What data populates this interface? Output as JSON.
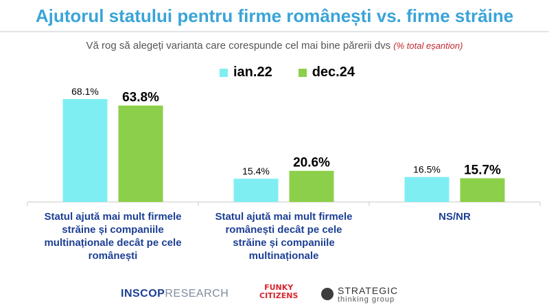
{
  "header": {
    "title": "Ajutorul statului pentru firme românești vs. firme străine",
    "subtitle": "Vă rog să alegeți varianta care corespunde cel mai bine părerii dvs",
    "subtitle_note": "(% total eșantion)"
  },
  "colors": {
    "title": "#3aa4d8",
    "series_ian22": "#7feef3",
    "series_dec24": "#8ccf4a",
    "category_label": "#1c3f94",
    "note": "#c0262d"
  },
  "chart_data": {
    "type": "bar",
    "title": "Ajutorul statului pentru firme românești vs. firme străine",
    "categories": [
      "Statul ajută mai mult firmele străine și companiile multinaționale decât pe cele românești",
      "Statul ajută mai mult firmele românești decât pe cele străine și companiile multinaționale",
      "NS/NR"
    ],
    "category_lines": [
      [
        "Statul ajută mai mult firmele",
        "străine și companiile",
        "multinaționale decât pe cele",
        "românești"
      ],
      [
        "Statul ajută mai mult firmele",
        "românești decât pe cele",
        "străine și companiile",
        "multinaționale"
      ],
      [
        "NS/NR"
      ]
    ],
    "series": [
      {
        "name": "ian.22",
        "values": [
          68.1,
          15.4,
          16.5
        ],
        "labels": [
          "68.1%",
          "15.4%",
          "16.5%"
        ]
      },
      {
        "name": "dec.24",
        "values": [
          63.8,
          20.6,
          15.7
        ],
        "labels": [
          "63.8%",
          "20.6%",
          "15.7%"
        ]
      }
    ],
    "ylim": [
      0,
      80
    ],
    "grid": false,
    "legend": "top-center"
  },
  "logos": {
    "inscop_bold": "INSCOP",
    "inscop_light": "RESEARCH",
    "funky_1": "FUNKY",
    "funky_2": "CITIZENS",
    "strategic_1": "STRATEGIC",
    "strategic_2": "thinking group"
  }
}
